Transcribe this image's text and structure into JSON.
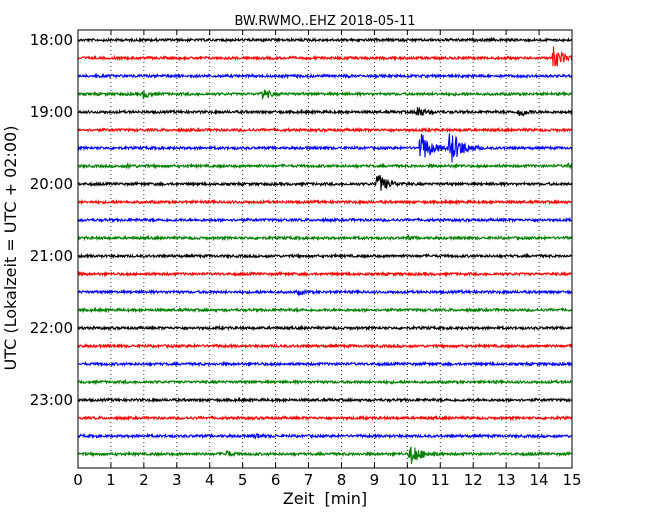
{
  "chart_data": {
    "type": "line",
    "title": "BW.RWMO..EHZ 2018-05-11",
    "xlabel": "Zeit  [min]",
    "ylabel": "UTC (Lokalzeit = UTC + 02:00)",
    "xlim": [
      0,
      15
    ],
    "x_ticks": [
      "0",
      "1",
      "2",
      "3",
      "4",
      "5",
      "6",
      "7",
      "8",
      "9",
      "10",
      "11",
      "12",
      "13",
      "14",
      "15"
    ],
    "y_tick_labels": [
      "18:00",
      "19:00",
      "20:00",
      "21:00",
      "22:00",
      "23:00"
    ],
    "grid": "vertical dotted",
    "colors": [
      "#000000",
      "#ff0000",
      "#0000ff",
      "#008000"
    ],
    "traces": [
      {
        "start": "18:00",
        "color": "#000000",
        "events": []
      },
      {
        "start": "18:15",
        "color": "#ff0000",
        "events": [
          {
            "t": 14.45,
            "amp": 1.0
          }
        ]
      },
      {
        "start": "18:30",
        "color": "#0000ff",
        "events": []
      },
      {
        "start": "18:45",
        "color": "#008000",
        "events": [
          {
            "t": 2.0,
            "amp": 0.4
          },
          {
            "t": 5.6,
            "amp": 0.55
          }
        ]
      },
      {
        "start": "19:00",
        "color": "#000000",
        "events": [
          {
            "t": 10.3,
            "amp": 0.55
          },
          {
            "t": 13.4,
            "amp": 0.45
          }
        ]
      },
      {
        "start": "19:15",
        "color": "#ff0000",
        "events": []
      },
      {
        "start": "19:30",
        "color": "#0000ff",
        "events": [
          {
            "t": 10.4,
            "amp": 1.4
          },
          {
            "t": 11.3,
            "amp": 1.6
          }
        ]
      },
      {
        "start": "19:45",
        "color": "#008000",
        "events": [
          {
            "t": 1.5,
            "amp": 0.15
          },
          {
            "t": 14.9,
            "amp": 0.2
          }
        ]
      },
      {
        "start": "20:00",
        "color": "#000000",
        "events": [
          {
            "t": 9.1,
            "amp": 1.0
          }
        ]
      },
      {
        "start": "20:15",
        "color": "#ff0000",
        "events": []
      },
      {
        "start": "20:30",
        "color": "#0000ff",
        "events": []
      },
      {
        "start": "20:45",
        "color": "#008000",
        "events": [
          {
            "t": 10.0,
            "amp": 0.15
          }
        ]
      },
      {
        "start": "21:00",
        "color": "#000000",
        "events": []
      },
      {
        "start": "21:15",
        "color": "#ff0000",
        "events": []
      },
      {
        "start": "21:30",
        "color": "#0000ff",
        "events": [
          {
            "t": 6.7,
            "amp": 0.2
          }
        ]
      },
      {
        "start": "21:45",
        "color": "#008000",
        "events": []
      },
      {
        "start": "22:00",
        "color": "#000000",
        "events": []
      },
      {
        "start": "22:15",
        "color": "#ff0000",
        "events": []
      },
      {
        "start": "22:30",
        "color": "#0000ff",
        "events": []
      },
      {
        "start": "22:45",
        "color": "#008000",
        "events": []
      },
      {
        "start": "23:00",
        "color": "#000000",
        "events": []
      },
      {
        "start": "23:15",
        "color": "#ff0000",
        "events": []
      },
      {
        "start": "23:30",
        "color": "#0000ff",
        "events": [
          {
            "t": 5.4,
            "amp": 0.2
          }
        ]
      },
      {
        "start": "23:45",
        "color": "#008000",
        "events": [
          {
            "t": 4.5,
            "amp": 0.3
          },
          {
            "t": 10.1,
            "amp": 1.1
          }
        ]
      }
    ]
  }
}
